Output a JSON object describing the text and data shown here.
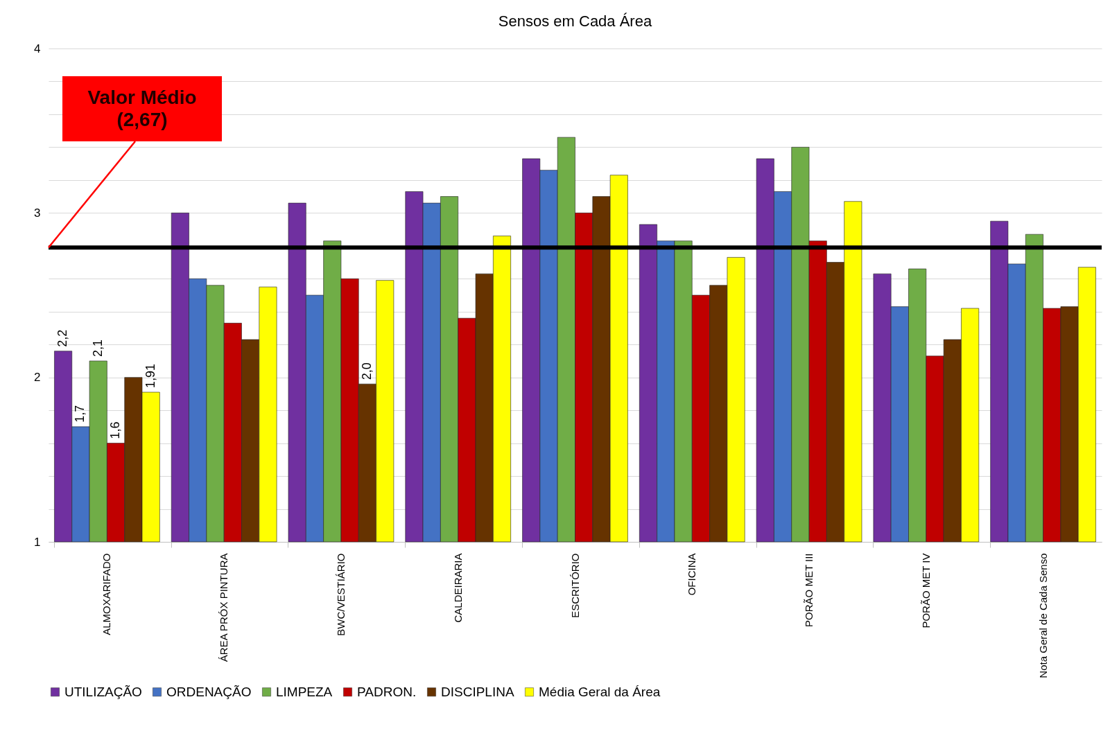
{
  "chart_data": {
    "type": "bar",
    "title": "Sensos em Cada Área",
    "categories": [
      "ALMOXARIFADO",
      "ÁREA PRÓX PINTURA",
      "BWC/VESTIÁRIO",
      "CALDEIRARIA",
      "ESCRITÓRIO",
      "OFICINA",
      "PORÃO MET III",
      "PORÃO MET IV",
      "Nota Geral de Cada Senso"
    ],
    "series": [
      {
        "name": "UTILIZAÇÃO",
        "color": "#7030a0",
        "values": [
          2.16,
          3.0,
          3.06,
          3.13,
          3.33,
          2.93,
          3.33,
          2.63,
          2.95
        ],
        "value_labels": [
          "2,2",
          null,
          null,
          null,
          null,
          null,
          null,
          null,
          null
        ]
      },
      {
        "name": "ORDENAÇÃO",
        "color": "#4472c4",
        "values": [
          1.7,
          2.6,
          2.5,
          3.06,
          3.26,
          2.83,
          3.13,
          2.43,
          2.69
        ],
        "value_labels": [
          "1,7",
          null,
          null,
          null,
          null,
          null,
          null,
          null,
          null
        ]
      },
      {
        "name": "LIMPEZA",
        "color": "#70ad47",
        "values": [
          2.1,
          2.56,
          2.83,
          3.1,
          3.46,
          2.83,
          3.4,
          2.66,
          2.87
        ],
        "value_labels": [
          "2,1",
          null,
          null,
          null,
          null,
          null,
          null,
          null,
          null
        ]
      },
      {
        "name": "PADRON.",
        "color": "#c00000",
        "values": [
          1.6,
          2.33,
          2.6,
          2.36,
          3.0,
          2.5,
          2.83,
          2.13,
          2.42
        ],
        "value_labels": [
          "1,6",
          null,
          null,
          null,
          null,
          null,
          null,
          null,
          null
        ]
      },
      {
        "name": "DISCIPLINA",
        "color": "#663300",
        "values": [
          2.0,
          2.23,
          1.96,
          2.63,
          3.1,
          2.56,
          2.7,
          2.23,
          2.43
        ],
        "value_labels": [
          null,
          null,
          "2,0",
          null,
          null,
          null,
          null,
          null,
          null
        ]
      },
      {
        "name": "Média Geral da Área",
        "color": "#ffff00",
        "values": [
          1.91,
          2.55,
          2.59,
          2.86,
          3.23,
          2.73,
          3.07,
          2.42,
          2.67
        ],
        "value_labels": [
          "1,91",
          null,
          null,
          null,
          null,
          null,
          null,
          null,
          null
        ]
      }
    ],
    "ylim": [
      1,
      4
    ],
    "yticks": [
      1,
      {
        "value": 1.2,
        "label": null
      },
      {
        "value": 1.4,
        "label": null
      },
      {
        "value": 1.6,
        "label": null
      },
      {
        "value": 1.8,
        "label": null
      },
      2,
      {
        "value": 2.2,
        "label": null
      },
      {
        "value": 2.4,
        "label": null
      },
      {
        "value": 2.6,
        "label": null
      },
      {
        "value": 2.8,
        "label": null
      },
      3,
      {
        "value": 3.2,
        "label": null
      },
      {
        "value": 3.4,
        "label": null
      },
      {
        "value": 3.6,
        "label": null
      },
      {
        "value": 3.8,
        "label": null
      },
      4
    ],
    "grid": "y",
    "legend": "bottom",
    "ref_lines": [
      {
        "axis": "y",
        "value": 2.79,
        "label": "Valor Médio (2,67)",
        "color": "#000000"
      }
    ]
  }
}
